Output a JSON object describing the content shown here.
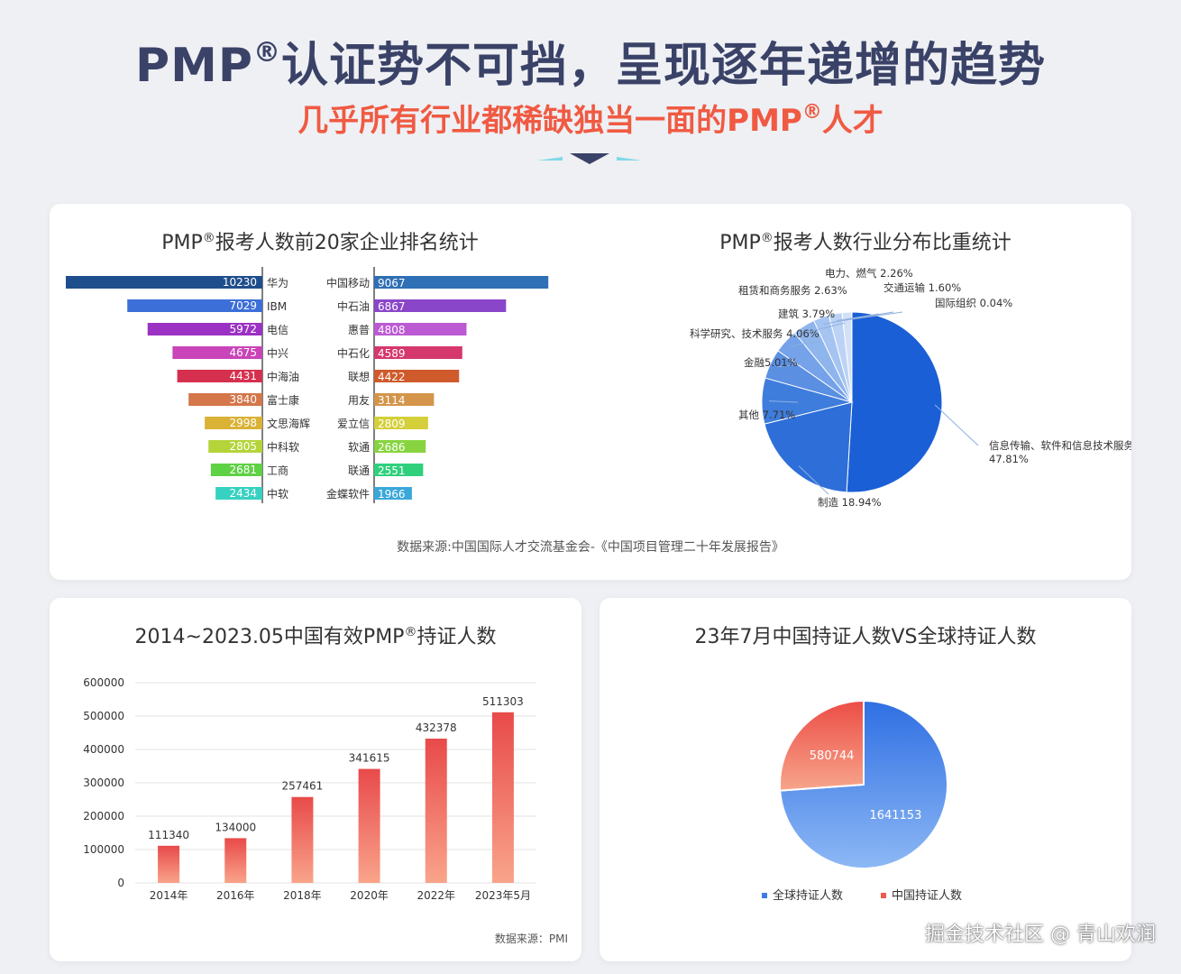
{
  "header": {
    "title_main": "PMP",
    "title_main_reg": "®",
    "title_main_rest": "认证势不可挡，呈现逐年递增的趋势",
    "title_sub": "几乎所有行业都稀缺独当一面的PMP",
    "title_sub_reg": "®",
    "title_sub_rest": "人才"
  },
  "card_top": {
    "left_title": "PMP",
    "left_title_reg": "®",
    "left_title_rest": "报考人数前20家企业排名统计",
    "right_title": "PMP",
    "right_title_reg": "®",
    "right_title_rest": "报考人数行业分布比重统计",
    "source": "数据来源:中国国际人才交流基金会-《中国项目管理二十年发展报告》"
  },
  "card_bl": {
    "title": "2014~2023.05中国有效PMP",
    "title_reg": "®",
    "title_rest": "持证人数",
    "source": "数据来源：PMI"
  },
  "card_br": {
    "title": "23年7月中国持证人数VS全球持证人数"
  },
  "watermark": "掘金技术社区 @ 青山欢润",
  "colors": {
    "title_navy": "#3a4267",
    "title_red": "#f05a42",
    "pie_blue": "#1a5fd6",
    "bar_red": "#e84a4a"
  },
  "chart_data": [
    {
      "type": "bar",
      "orientation": "horizontal",
      "title": "PMP®报考人数前20家企业排名统计",
      "left": {
        "categories": [
          "华为",
          "IBM",
          "电信",
          "中兴",
          "中海油",
          "富士康",
          "文思海辉",
          "中科软",
          "工商",
          "中软"
        ],
        "values": [
          10230,
          7029,
          5972,
          4675,
          4431,
          3840,
          2998,
          2805,
          2681,
          2434
        ],
        "colors": [
          "#1f4e8c",
          "#3d6fd9",
          "#9b32c4",
          "#c944b8",
          "#d6304f",
          "#d4774a",
          "#d9b236",
          "#b4d43a",
          "#5fd144",
          "#36d1c1"
        ]
      },
      "right": {
        "categories": [
          "中国移动",
          "中石油",
          "惠普",
          "中石化",
          "联想",
          "用友",
          "爱立信",
          "软通",
          "联通",
          "金蝶软件"
        ],
        "values": [
          9067,
          6867,
          4808,
          4589,
          4422,
          3114,
          2809,
          2686,
          2551,
          1966
        ],
        "colors": [
          "#2f6fb5",
          "#8a46c9",
          "#bb5ad3",
          "#d4386c",
          "#cf5a2c",
          "#d4954a",
          "#d4cf3a",
          "#88d440",
          "#2fd07c",
          "#3aa7d9"
        ]
      }
    },
    {
      "type": "pie",
      "title": "PMP®报考人数行业分布比重统计",
      "slices": [
        {
          "label": "信息传输、软件和信息技术服务",
          "value": 47.81,
          "text": "信息传输、软件和信息技术服务",
          "pct": "47.81%",
          "color": "#1a5fd6"
        },
        {
          "label": "制造",
          "value": 18.94,
          "text": "制造 18.94%",
          "color": "#2e6ed9"
        },
        {
          "label": "其他",
          "value": 7.71,
          "text": "其他 7.71%",
          "color": "#3f7ddc"
        },
        {
          "label": "金融",
          "value": 5.01,
          "text": "金融5.01%",
          "color": "#5a8fe2"
        },
        {
          "label": "科学研究、技术服务",
          "value": 4.06,
          "text": "科学研究、技术服务 4.06%",
          "color": "#75a2e8"
        },
        {
          "label": "建筑",
          "value": 3.79,
          "text": "建筑 3.79%",
          "color": "#8fb5ed"
        },
        {
          "label": "租赁和商务服务",
          "value": 2.63,
          "text": "租赁和商务服务 2.63%",
          "color": "#a6c4f1"
        },
        {
          "label": "电力、燃气",
          "value": 2.26,
          "text": "电力、燃气 2.26%",
          "color": "#bcd3f5"
        },
        {
          "label": "交通运输",
          "value": 1.6,
          "text": "交通运输 1.60%",
          "color": "#d2e1f8"
        },
        {
          "label": "国际组织",
          "value": 0.04,
          "text": "国际组织 0.04%",
          "color": "#e5eefb"
        }
      ]
    },
    {
      "type": "bar",
      "title": "2014~2023.05中国有效PMP®持证人数",
      "categories": [
        "2014年",
        "2016年",
        "2018年",
        "2020年",
        "2022年",
        "2023年5月"
      ],
      "values": [
        111340,
        134000,
        257461,
        341615,
        432378,
        511303
      ],
      "yticks": [
        "0",
        "100000",
        "200000",
        "300000",
        "400000",
        "500000",
        "600000"
      ],
      "ylim": [
        0,
        600000
      ]
    },
    {
      "type": "pie",
      "title": "23年7月中国持证人数VS全球持证人数",
      "slices": [
        {
          "label": "全球持证人数",
          "value": 1641153,
          "text": "1641153",
          "color": "#3d7be8"
        },
        {
          "label": "中国持证人数",
          "value": 580744,
          "text": "580744",
          "color": "#ee5a4e"
        }
      ],
      "legend": [
        "全球持证人数",
        "中国持证人数"
      ],
      "legend_position": "bottom"
    }
  ]
}
